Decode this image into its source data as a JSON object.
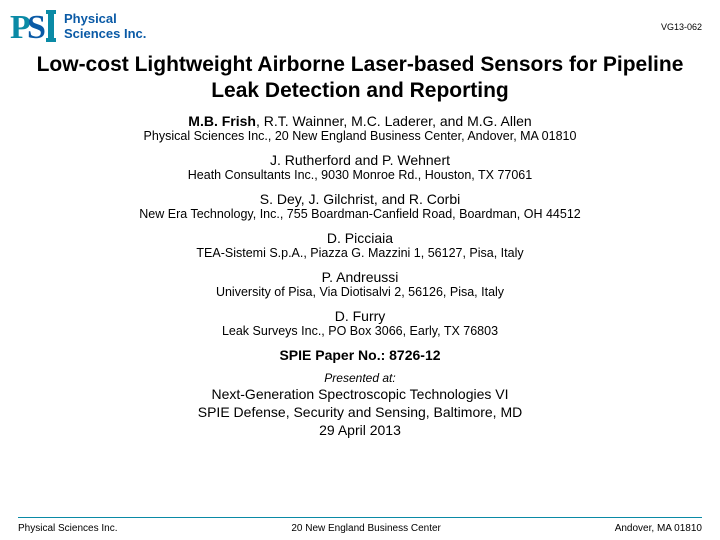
{
  "header": {
    "logo_line1": "Physical",
    "logo_line2": "Sciences Inc.",
    "logo_color": "#0a5aa6",
    "doc_id": "VG13-062"
  },
  "title": "Low-cost Lightweight Airborne Laser-based Sensors for Pipeline Leak Detection and Reporting",
  "groups": [
    {
      "lead": "M.B. Frish",
      "rest": ", R.T. Wainner, M.C. Laderer, and  M.G. Allen",
      "affil": "Physical Sciences Inc., 20 New England Business Center, Andover, MA 01810"
    },
    {
      "lead": "",
      "rest": "J. Rutherford and P. Wehnert",
      "affil": "Heath Consultants Inc., 9030 Monroe Rd., Houston, TX 77061"
    },
    {
      "lead": "",
      "rest": "S. Dey, J. Gilchrist, and R. Corbi",
      "affil": "New Era Technology, Inc., 755 Boardman-Canfield Road, Boardman, OH 44512"
    },
    {
      "lead": "",
      "rest": "D. Picciaia",
      "affil": "TEA-Sistemi  S.p.A., Piazza G. Mazzini 1, 56127, Pisa, Italy"
    },
    {
      "lead": "",
      "rest": "P. Andreussi",
      "affil": "University of Pisa, Via Diotisalvi 2, 56126, Pisa, Italy"
    },
    {
      "lead": "",
      "rest": "D. Furry",
      "affil": "Leak Surveys Inc., PO Box 3066, Early, TX 76803"
    }
  ],
  "paper_no": "SPIE Paper No.: 8726-12",
  "presented_label": "Presented at:",
  "venue_line1": "Next-Generation Spectroscopic Technologies VI",
  "venue_line2": "SPIE Defense, Security and Sensing, Baltimore, MD",
  "venue_line3": "29 April 2013",
  "footer": {
    "left": "Physical Sciences Inc.",
    "center": "20 New England Business Center",
    "right": "Andover, MA  01810",
    "rule_color": "#0a8aa6"
  },
  "style": {
    "background": "#ffffff",
    "title_fontsize": 21,
    "authors_fontsize": 14,
    "affil_fontsize": 12.5,
    "footer_fontsize": 10
  }
}
